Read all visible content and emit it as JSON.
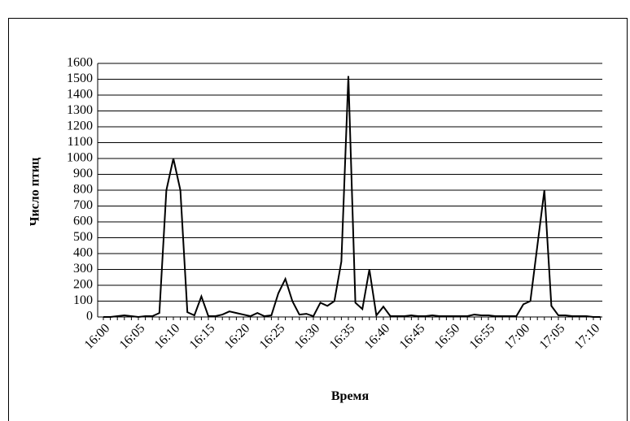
{
  "chart_data": {
    "type": "line",
    "y_label": "Число птиц",
    "x_label": "Время",
    "categories": [
      "16:00",
      null,
      null,
      null,
      null,
      "16:05",
      null,
      null,
      null,
      null,
      "16:10",
      null,
      null,
      null,
      null,
      "16:15",
      null,
      null,
      null,
      null,
      "16:20",
      null,
      null,
      null,
      null,
      "16:25",
      null,
      null,
      null,
      null,
      "16:30",
      null,
      null,
      null,
      null,
      "16:35",
      null,
      null,
      null,
      null,
      "16:40",
      null,
      null,
      null,
      null,
      "16:45",
      null,
      null,
      null,
      null,
      "16:50",
      null,
      null,
      null,
      null,
      "16:55",
      null,
      null,
      null,
      null,
      "17:00",
      null,
      null,
      null,
      null,
      "17:05",
      null,
      null,
      null,
      null,
      "17:10",
      null
    ],
    "values": [
      0,
      0,
      5,
      10,
      5,
      0,
      5,
      5,
      25,
      800,
      1000,
      800,
      30,
      10,
      130,
      5,
      5,
      15,
      35,
      25,
      15,
      5,
      25,
      5,
      10,
      150,
      240,
      100,
      15,
      20,
      5,
      90,
      70,
      100,
      350,
      1520,
      90,
      50,
      300,
      10,
      65,
      5,
      5,
      5,
      10,
      5,
      5,
      10,
      5,
      5,
      5,
      5,
      5,
      15,
      10,
      10,
      5,
      5,
      5,
      5,
      80,
      100,
      450,
      800,
      70,
      10,
      10,
      5,
      5,
      5,
      0,
      0
    ],
    "color": "#000000",
    "ylim": [
      0,
      1600
    ],
    "yticks": [
      0,
      100,
      200,
      300,
      400,
      500,
      600,
      700,
      800,
      900,
      1000,
      1100,
      1200,
      1300,
      1400,
      1500,
      1600
    ],
    "grid": true
  }
}
